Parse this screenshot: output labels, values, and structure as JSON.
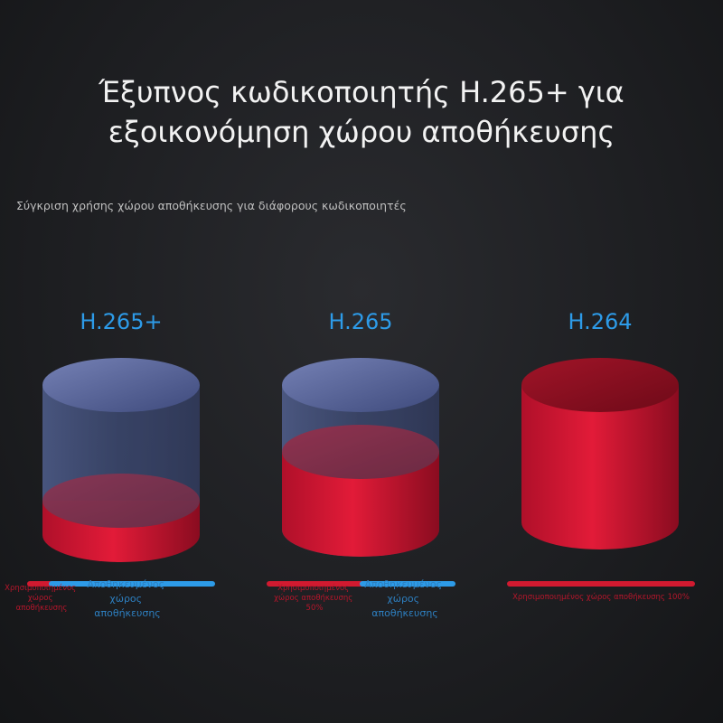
{
  "header": {
    "title_line1": "Έξυπνος κωδικοποιητής H.265+ για",
    "title_line2": "εξοικονόμηση χώρου αποθήκευσης",
    "subtitle": "Σύγκριση χρήσης χώρου αποθήκευσης για διάφορους κωδικοποιητές"
  },
  "colors": {
    "used": "#d11a30",
    "saved": "#2d9be8",
    "label": "#2d9be8"
  },
  "chart_data": {
    "type": "bar",
    "categories": [
      "H.265+",
      "H.265",
      "H.264"
    ],
    "series": [
      {
        "name": "Χρησιμοποιημένος χώρος αποθήκευσης",
        "values": [
          20,
          50,
          100
        ]
      },
      {
        "name": "Αποθηκευμένος χώρος αποθήκευσης",
        "values": [
          80,
          50,
          0
        ]
      }
    ],
    "ylim": [
      0,
      100
    ],
    "annotations": {
      "h265plus_used": "Χρησιμοποιημένος χώρος αποθήκευσης",
      "h265plus_saved": "Αποθηκευμένος χώρος αποθήκευσης",
      "h265_used": "Χρησιμοποιημένος χώρος αποθήκευσης 50%",
      "h265_saved": "Αποθηκευμένος χώρος αποθήκευσης",
      "h264_used": "Χρησιμοποιημένος χώρος αποθήκευσης 100%"
    }
  }
}
